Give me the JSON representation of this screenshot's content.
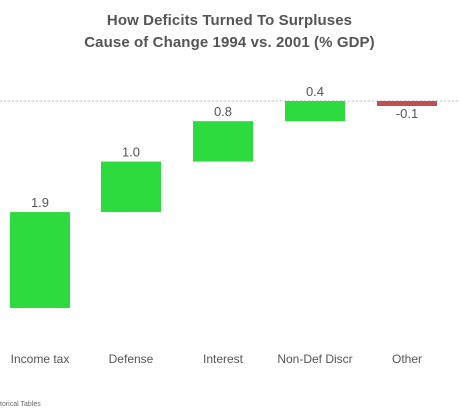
{
  "chart_data": {
    "type": "waterfall",
    "title": "How Deficits Turned To Surpluses",
    "subtitle": "Cause of Change 1994 vs. 2001 (% GDP)",
    "categories": [
      "Income tax",
      "Defense",
      "Interest",
      "Non-Def Discr",
      "Other"
    ],
    "values": [
      1.9,
      1.0,
      0.8,
      0.4,
      -0.1
    ],
    "data_labels": [
      "1.9",
      "1.0",
      "0.8",
      "0.4",
      "-0.1"
    ],
    "colors": {
      "increase": "#2ddb3e",
      "decrease": "#c0504d",
      "reference_line": "#bbbbbb",
      "text": "#555555"
    },
    "reference_line_style": "dashed",
    "xlabel": "",
    "ylabel": "",
    "grid": false,
    "legend": "none"
  },
  "source_note": "torical Tables"
}
